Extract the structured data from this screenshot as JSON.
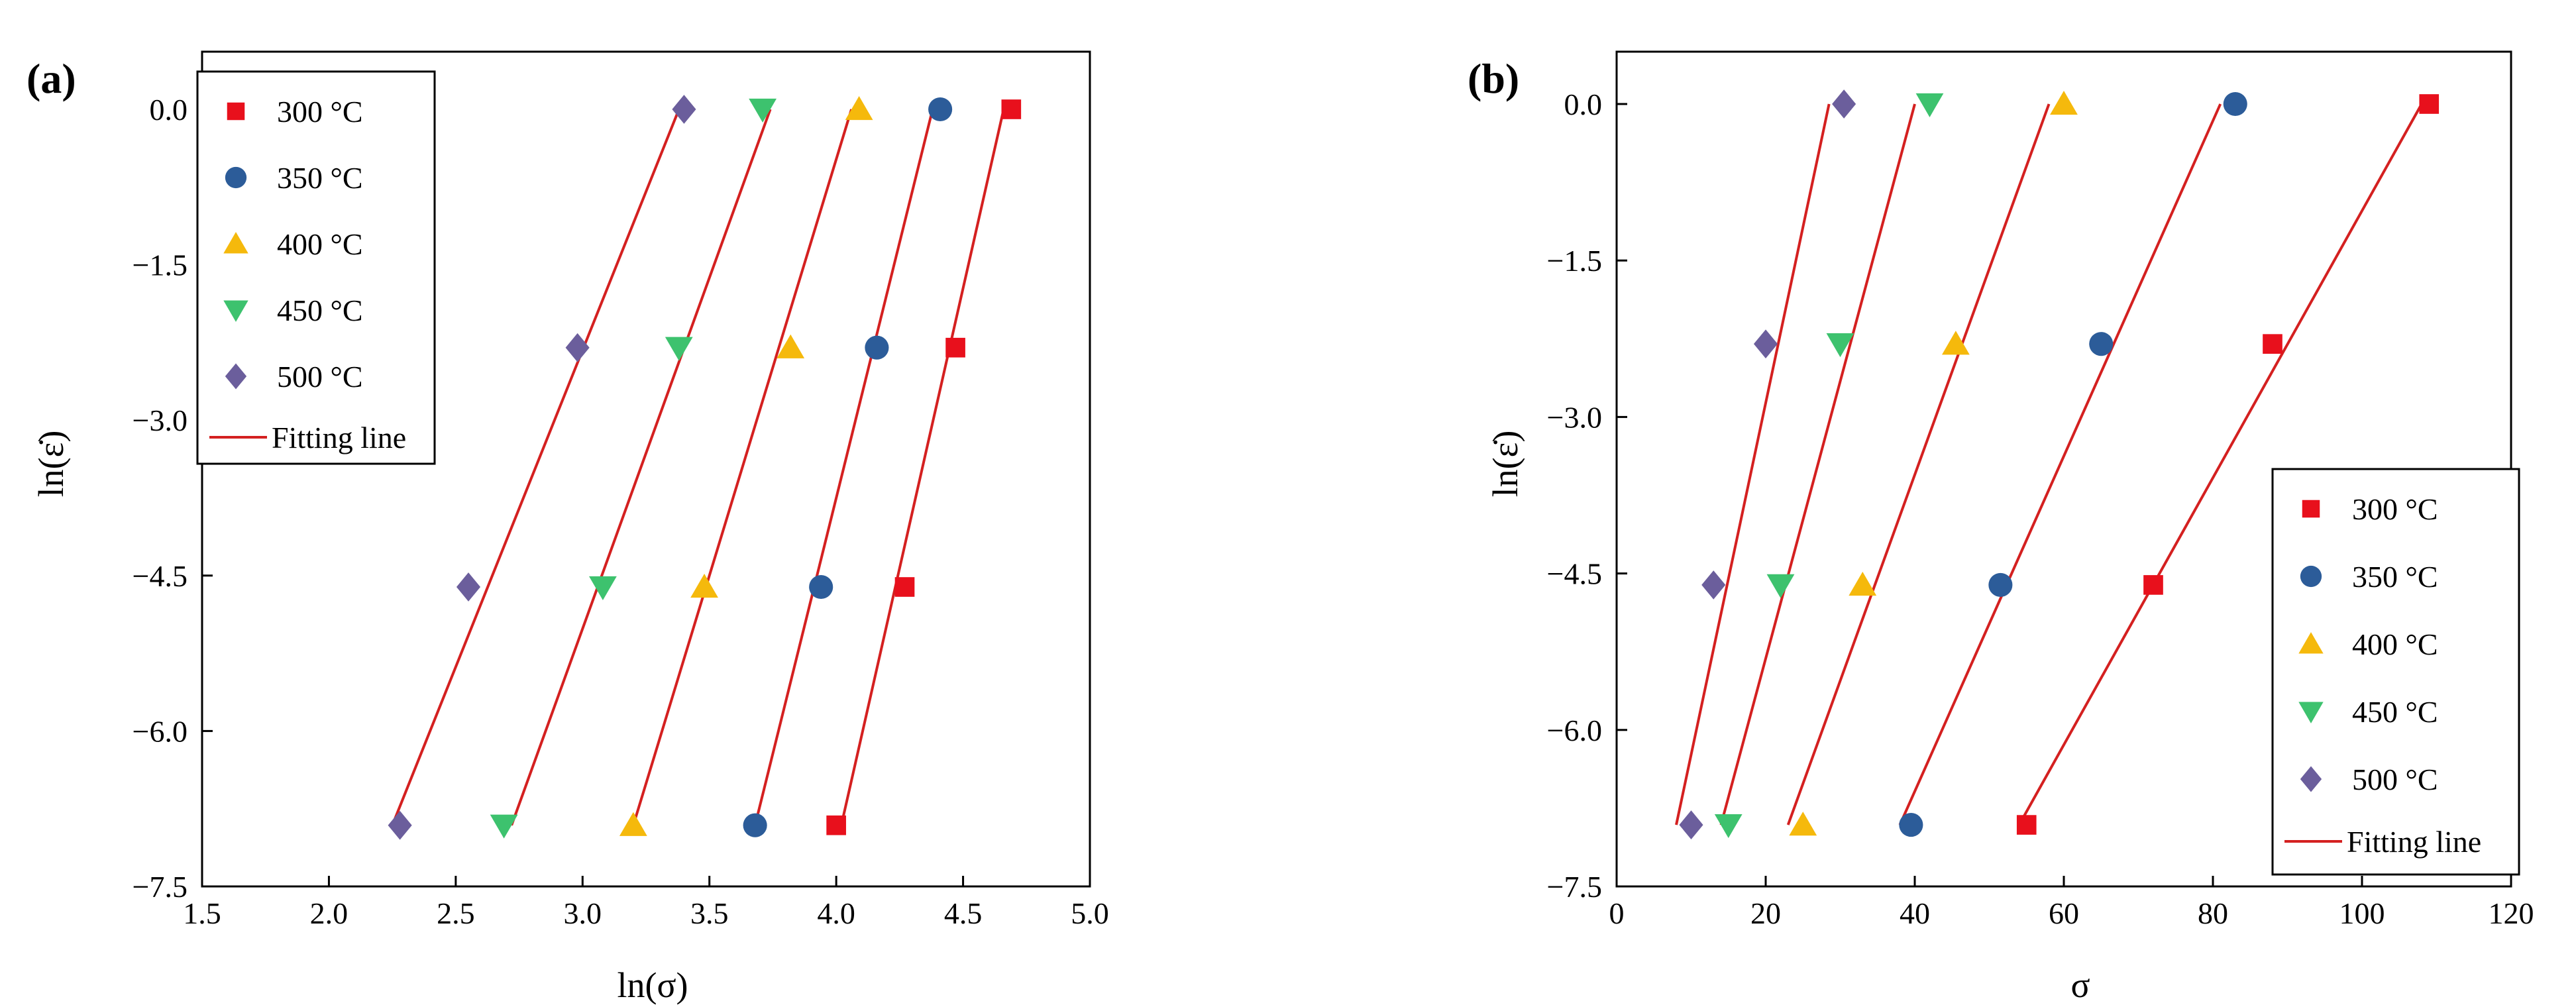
{
  "chart_data": [
    {
      "type": "scatter",
      "panel_label": "(a)",
      "xlabel": "ln(σ)",
      "ylabel": "ln(ε̇)",
      "xlim": [
        1.5,
        5.0
      ],
      "ylim": [
        -7.5,
        0.5
      ],
      "xticks": [
        1.5,
        2.0,
        2.5,
        3.0,
        3.5,
        4.0,
        4.5,
        5.0
      ],
      "xtick_labels": [
        "1.5",
        "2.0",
        "2.5",
        "3.0",
        "3.5",
        "4.0",
        "4.5",
        "5.0"
      ],
      "yticks": [
        0.0,
        -1.5,
        -3.0,
        -4.5,
        -6.0,
        -7.5
      ],
      "ytick_labels": [
        "0.0",
        "−1.5",
        "−3.0",
        "−4.5",
        "−6.0",
        "−7.5"
      ],
      "legend_position": "top-left",
      "fit_label": "Fitting line",
      "fit_color": "#d42020",
      "series": [
        {
          "name": "300 °C",
          "marker": "square",
          "color": "#e8101c",
          "points": [
            [
              4.0,
              -6.91
            ],
            [
              4.27,
              -4.61
            ],
            [
              4.47,
              -2.3
            ],
            [
              4.69,
              0.0
            ]
          ],
          "fit": [
            [
              4.02,
              -6.91
            ],
            [
              4.66,
              0.0
            ]
          ]
        },
        {
          "name": "350 °C",
          "marker": "circle",
          "color": "#2c5c99",
          "points": [
            [
              3.68,
              -6.91
            ],
            [
              3.94,
              -4.61
            ],
            [
              4.16,
              -2.3
            ],
            [
              4.41,
              0.0
            ]
          ],
          "fit": [
            [
              3.68,
              -6.91
            ],
            [
              4.38,
              0.0
            ]
          ]
        },
        {
          "name": "400 °C",
          "marker": "triangle-up",
          "color": "#f5b90c",
          "points": [
            [
              3.2,
              -6.91
            ],
            [
              3.48,
              -4.61
            ],
            [
              3.82,
              -2.3
            ],
            [
              4.09,
              0.0
            ]
          ],
          "fit": [
            [
              3.2,
              -6.91
            ],
            [
              4.06,
              0.0
            ]
          ]
        },
        {
          "name": "450 °C",
          "marker": "triangle-down",
          "color": "#3dc26e",
          "points": [
            [
              2.69,
              -6.91
            ],
            [
              3.08,
              -4.61
            ],
            [
              3.38,
              -2.3
            ],
            [
              3.71,
              0.0
            ]
          ],
          "fit": [
            [
              2.72,
              -6.91
            ],
            [
              3.74,
              0.0
            ]
          ]
        },
        {
          "name": "500 °C",
          "marker": "diamond",
          "color": "#6b5e9c",
          "points": [
            [
              2.28,
              -6.91
            ],
            [
              2.55,
              -4.61
            ],
            [
              2.98,
              -2.3
            ],
            [
              3.4,
              0.0
            ]
          ],
          "fit": [
            [
              2.25,
              -6.91
            ],
            [
              3.38,
              0.0
            ]
          ]
        }
      ]
    },
    {
      "type": "scatter",
      "panel_label": "(b)",
      "xlabel": "σ",
      "ylabel": "ln(ε̇)",
      "xlim": [
        0,
        120
      ],
      "ylim": [
        -7.5,
        0.5
      ],
      "xticks": [
        0,
        20,
        40,
        60,
        80,
        100,
        120
      ],
      "xtick_labels": [
        "0",
        "20",
        "40",
        "60",
        "80",
        "100",
        "120"
      ],
      "yticks": [
        0.0,
        -1.5,
        -3.0,
        -4.5,
        -6.0,
        -7.5
      ],
      "ytick_labels": [
        "0.0",
        "−1.5",
        "−3.0",
        "−4.5",
        "−6.0",
        "−7.5"
      ],
      "legend_position": "bottom-right",
      "fit_label": "Fitting line",
      "fit_color": "#d42020",
      "series": [
        {
          "name": "300 °C",
          "marker": "square",
          "color": "#e8101c",
          "points": [
            [
              55,
              -6.91
            ],
            [
              72,
              -4.61
            ],
            [
              88,
              -2.3
            ],
            [
              109,
              0.0
            ]
          ],
          "fit": [
            [
              54,
              -6.91
            ],
            [
              108,
              0.0
            ]
          ]
        },
        {
          "name": "350 °C",
          "marker": "circle",
          "color": "#2c5c99",
          "points": [
            [
              39.5,
              -6.91
            ],
            [
              51.5,
              -4.61
            ],
            [
              65,
              -2.3
            ],
            [
              83,
              0.0
            ]
          ],
          "fit": [
            [
              38,
              -6.91
            ],
            [
              81,
              0.0
            ]
          ]
        },
        {
          "name": "400 °C",
          "marker": "triangle-up",
          "color": "#f5b90c",
          "points": [
            [
              25,
              -6.91
            ],
            [
              33,
              -4.61
            ],
            [
              45.5,
              -2.3
            ],
            [
              60,
              0.0
            ]
          ],
          "fit": [
            [
              23,
              -6.91
            ],
            [
              58,
              0.0
            ]
          ]
        },
        {
          "name": "450 °C",
          "marker": "triangle-down",
          "color": "#3dc26e",
          "points": [
            [
              15,
              -6.91
            ],
            [
              22,
              -4.61
            ],
            [
              30,
              -2.3
            ],
            [
              42,
              0.0
            ]
          ],
          "fit": [
            [
              14,
              -6.91
            ],
            [
              40,
              0.0
            ]
          ]
        },
        {
          "name": "500 °C",
          "marker": "diamond",
          "color": "#6b5e9c",
          "points": [
            [
              10,
              -6.91
            ],
            [
              13,
              -4.61
            ],
            [
              20,
              -2.3
            ],
            [
              30.5,
              0.0
            ]
          ],
          "fit": [
            [
              8,
              -6.91
            ],
            [
              28.5,
              0.0
            ]
          ]
        }
      ]
    }
  ]
}
